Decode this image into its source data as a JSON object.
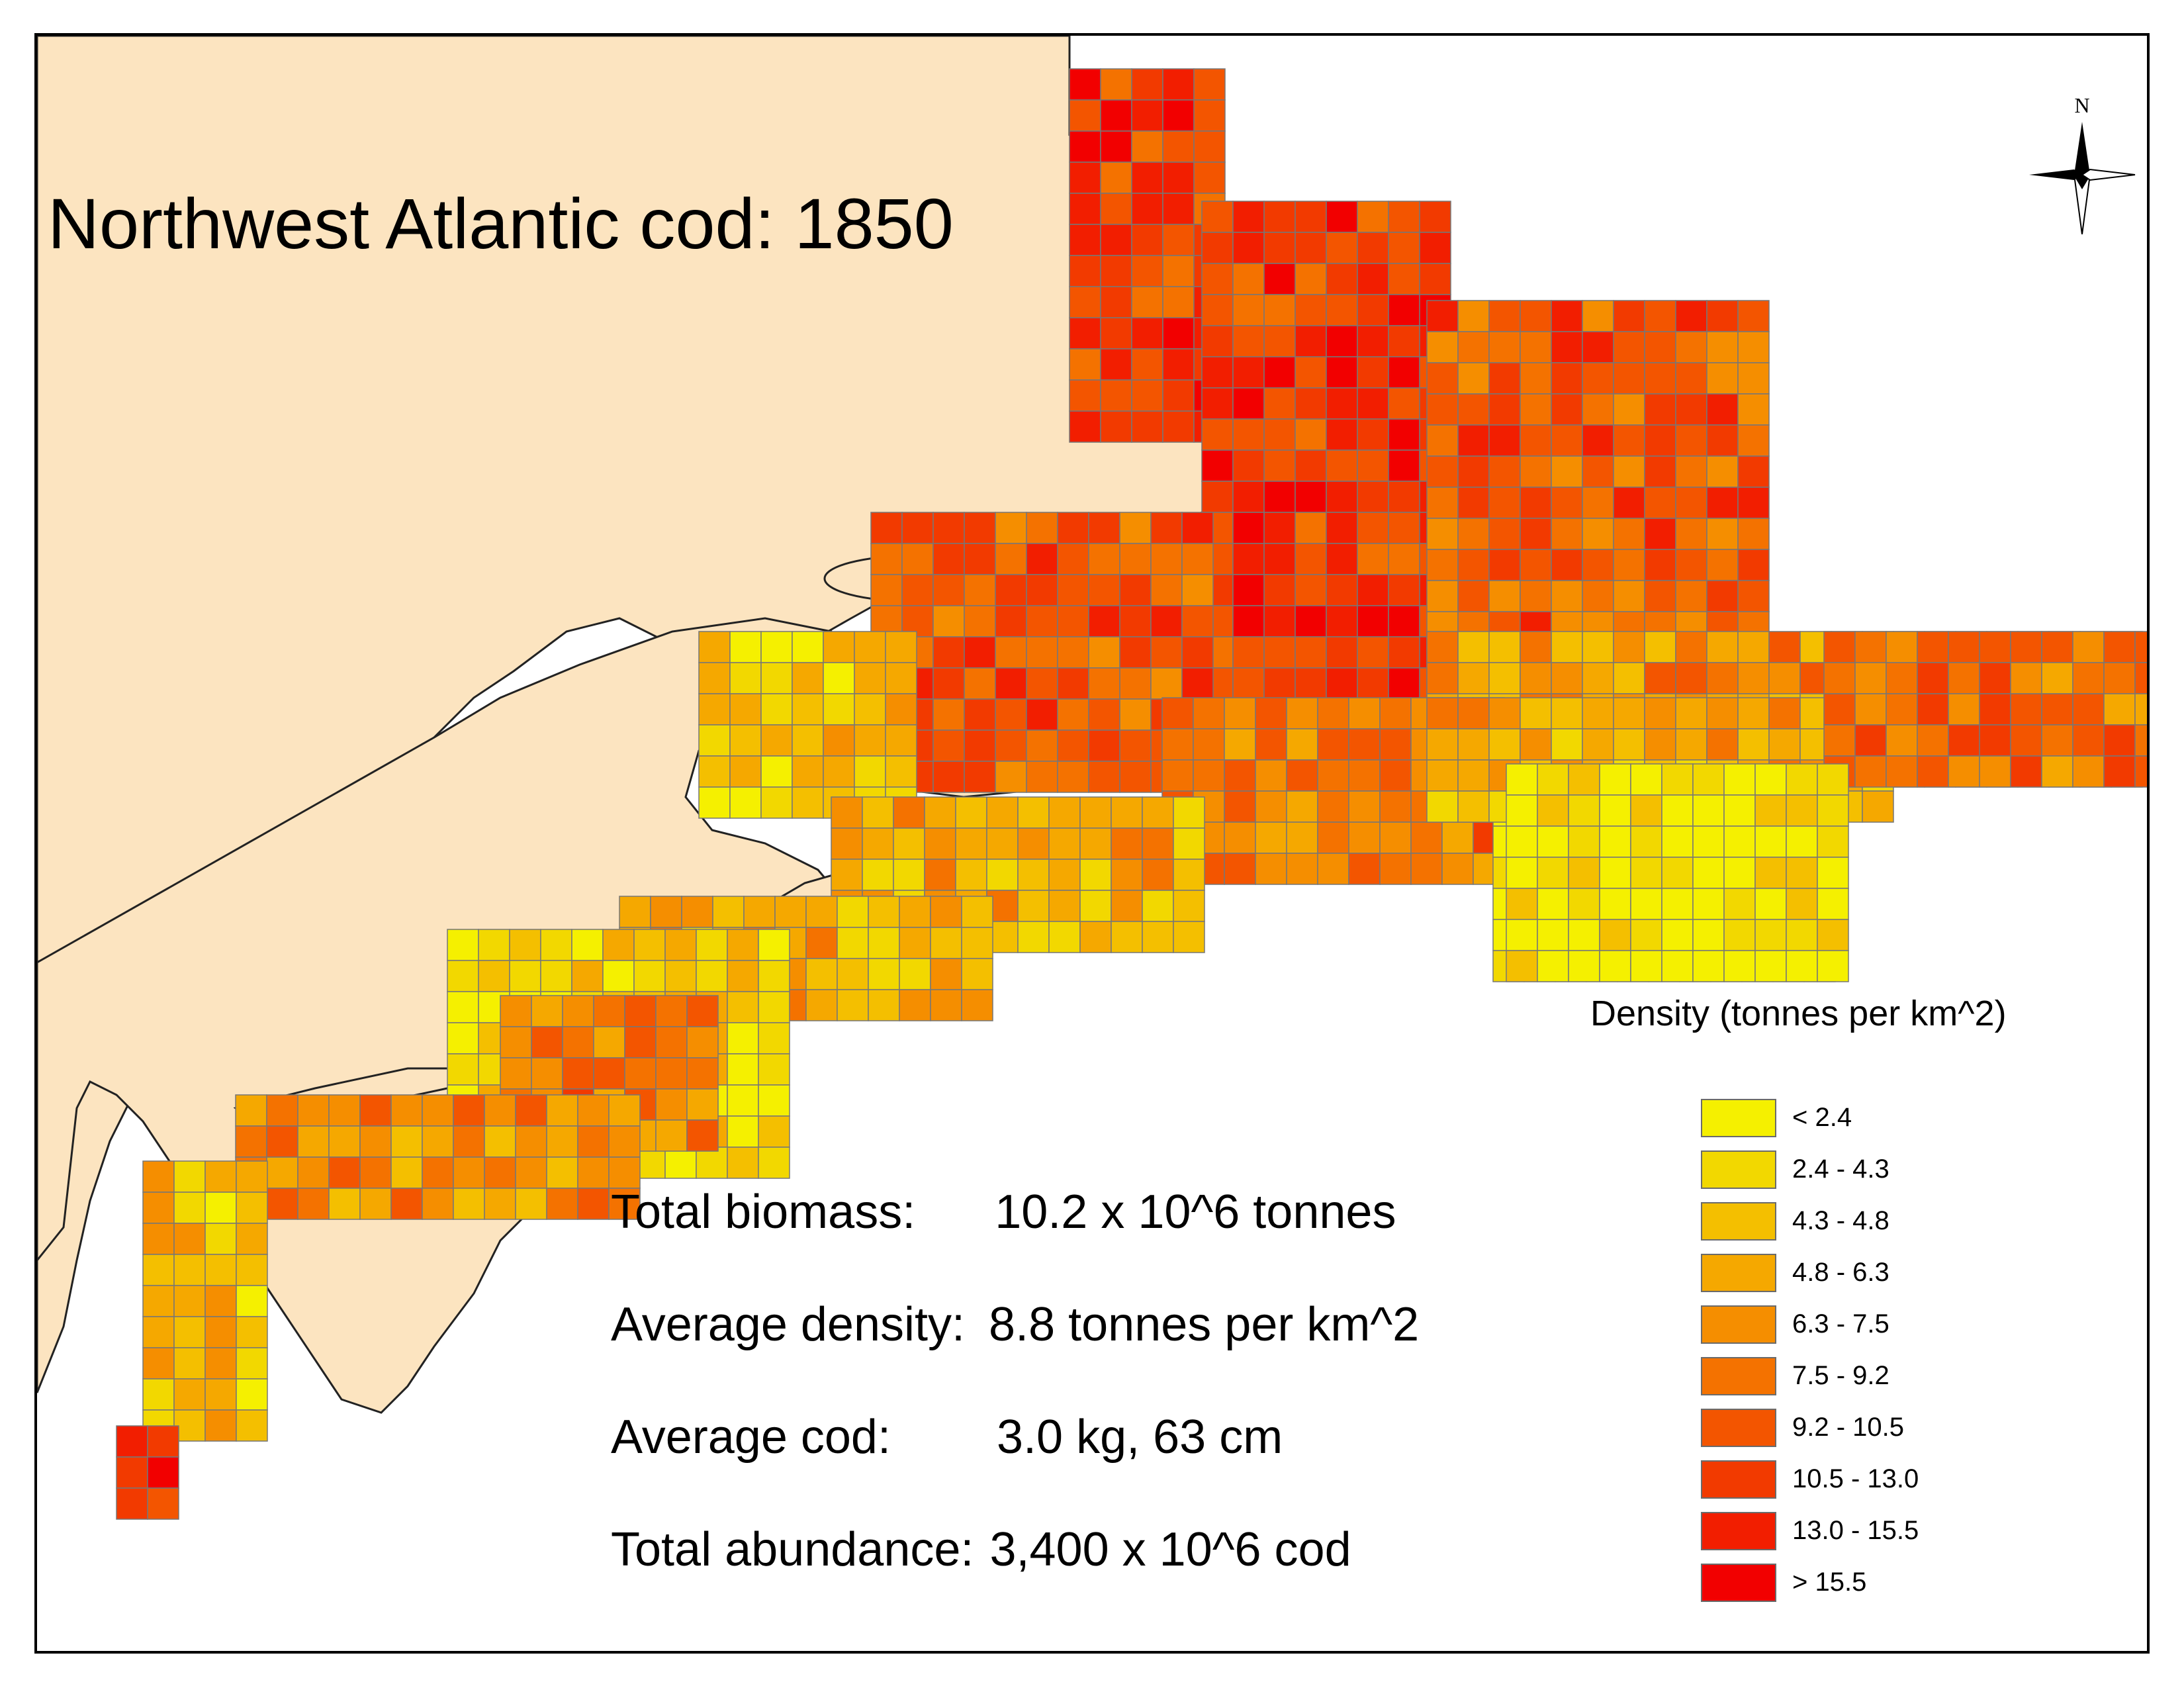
{
  "map": {
    "title": "Northwest Atlantic cod: 1850",
    "north_label": "N",
    "colors": {
      "land": "#fce4c0",
      "ocean": "#ffffff",
      "coastline": "#222222",
      "grid_line": "#777777"
    }
  },
  "stats": [
    {
      "label": "Total biomass:",
      "value": "10.2 x 10^6 tonnes"
    },
    {
      "label": "Average density:",
      "value": "8.8 tonnes per km^2"
    },
    {
      "label": "Average cod:",
      "value": "3.0 kg, 63 cm"
    },
    {
      "label": "Total abundance:",
      "value": "3,400 x 10^6 cod"
    }
  ],
  "legend": {
    "title": "Density (tonnes per km^2)",
    "classes": [
      {
        "label": " < 2.4",
        "color": "#f5f000"
      },
      {
        "label": "2.4 - 4.3",
        "color": "#f2d800"
      },
      {
        "label": "4.3 - 4.8",
        "color": "#f4bf00"
      },
      {
        "label": "4.8 - 6.3",
        "color": "#f5a800"
      },
      {
        "label": "6.3 - 7.5",
        "color": "#f58e00"
      },
      {
        "label": "7.5 - 9.2",
        "color": "#f47200"
      },
      {
        "label": "9.2 - 10.5",
        "color": "#f35500"
      },
      {
        "label": "10.5 - 13.0",
        "color": "#f23a00"
      },
      {
        "label": "13.0 - 15.5",
        "color": "#f21e00"
      },
      {
        "label": "> 15.5",
        "color": "#f20000"
      }
    ]
  }
}
